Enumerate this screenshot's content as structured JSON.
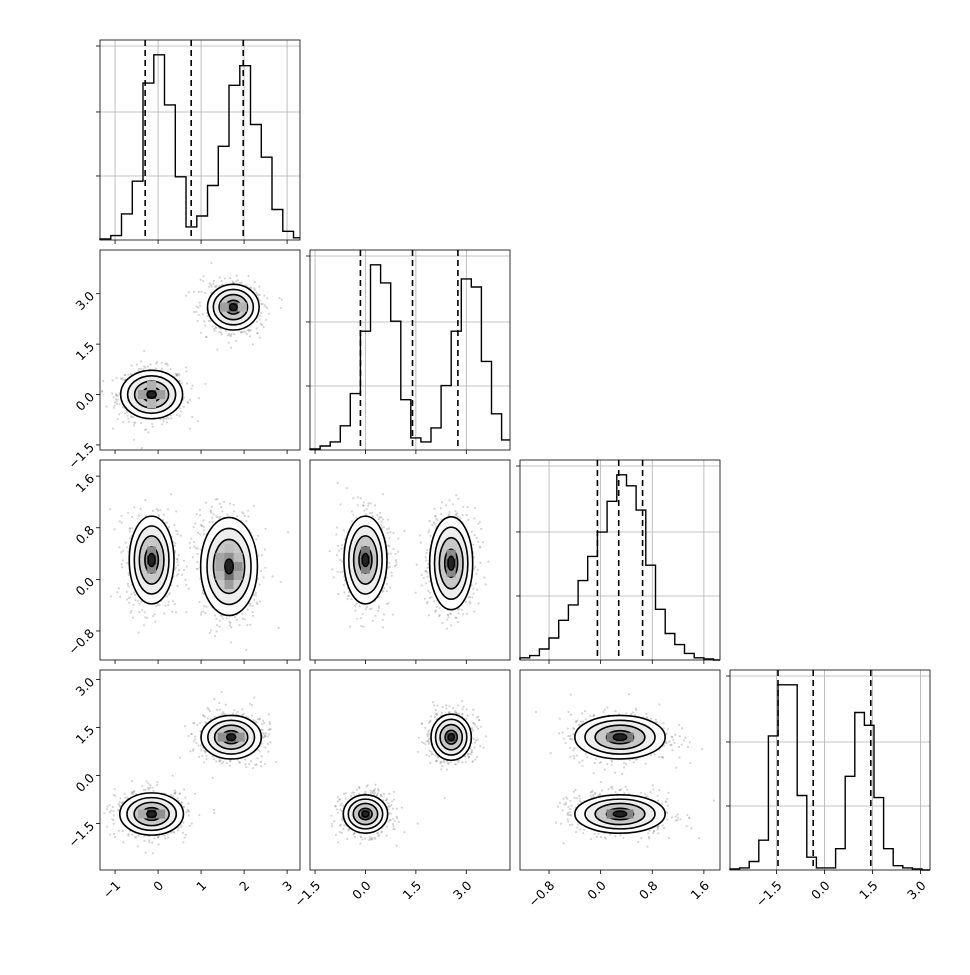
{
  "chart_data": {
    "type": "corner",
    "grid": true,
    "x_tick_labels": [
      [
        "−1",
        "0",
        "1",
        "2",
        "3"
      ],
      [
        "−1.5",
        "0.0",
        "1.5",
        "3.0"
      ],
      [
        "−0.8",
        "0.0",
        "0.8",
        "1.6"
      ],
      [
        "−1.5",
        "0.0",
        "1.5",
        "3.0"
      ]
    ],
    "y_tick_labels": [
      [],
      [
        "−1.5",
        "0.0",
        "1.5",
        "3.0"
      ],
      [
        "−0.8",
        "0.0",
        "0.8",
        "1.6"
      ],
      [
        "−1.5",
        "0.0",
        "1.5",
        "3.0"
      ]
    ],
    "x_ticks": [
      [
        -1,
        0,
        1,
        2,
        3
      ],
      [
        -1.5,
        0,
        1.5,
        3
      ],
      [
        -0.8,
        0,
        0.8,
        1.6
      ],
      [
        -1.5,
        0,
        1.5,
        3
      ]
    ],
    "ranges": [
      [
        -1.35,
        3.3
      ],
      [
        -1.65,
        4.3
      ],
      [
        -1.25,
        1.85
      ],
      [
        -2.95,
        3.3
      ]
    ],
    "quantiles": [
      [
        -0.3,
        0.77,
        1.98
      ],
      [
        -0.15,
        1.4,
        2.75
      ],
      [
        -0.05,
        0.28,
        0.65
      ],
      [
        -1.45,
        -0.35,
        1.45
      ]
    ],
    "histograms": [
      {
        "bins": [
          -1.35,
          -1.1,
          -0.85,
          -0.6,
          -0.35,
          -0.1,
          0.15,
          0.4,
          0.65,
          0.9,
          1.15,
          1.4,
          1.65,
          1.9,
          2.15,
          2.4,
          2.65,
          2.9,
          3.15,
          3.3
        ],
        "counts": [
          0.5,
          2,
          12,
          27,
          72,
          85,
          62,
          29,
          6,
          11,
          25,
          43,
          71,
          80,
          53,
          38,
          14,
          4,
          1
        ]
      },
      {
        "bins": [
          -1.65,
          -1.35,
          -1.05,
          -0.75,
          -0.45,
          -0.15,
          0.15,
          0.45,
          0.75,
          1.05,
          1.35,
          1.65,
          1.95,
          2.25,
          2.55,
          2.85,
          3.15,
          3.45,
          3.75,
          4.05,
          4.3
        ],
        "counts": [
          0.5,
          2,
          4,
          12,
          28,
          59,
          92,
          83,
          64,
          25,
          6,
          4,
          11,
          32,
          59,
          85,
          81,
          44,
          18,
          5
        ]
      },
      {
        "bins": [
          -1.25,
          -1.1,
          -0.95,
          -0.8,
          -0.65,
          -0.5,
          -0.35,
          -0.2,
          -0.05,
          0.1,
          0.25,
          0.4,
          0.55,
          0.7,
          0.85,
          1.0,
          1.15,
          1.3,
          1.45,
          1.6,
          1.75,
          1.85
        ],
        "counts": [
          1,
          2,
          5,
          10,
          18,
          25,
          36,
          47,
          58,
          72,
          84,
          79,
          68,
          43,
          23,
          12,
          7,
          3,
          1,
          0.5,
          0
        ]
      },
      {
        "bins": [
          -2.95,
          -2.65,
          -2.35,
          -2.05,
          -1.75,
          -1.45,
          -1.15,
          -0.85,
          -0.55,
          -0.25,
          0.05,
          0.35,
          0.65,
          0.95,
          1.25,
          1.55,
          1.85,
          2.15,
          2.45,
          2.75,
          3.05,
          3.3
        ],
        "counts": [
          0.5,
          1,
          4,
          14,
          63,
          87,
          87,
          35,
          6,
          1,
          1,
          10,
          44,
          74,
          68,
          34,
          10,
          2,
          1,
          0.5,
          0
        ]
      }
    ],
    "clusters_2d": [
      {
        "row": 1,
        "col": 0,
        "points": [
          [
            -0.15,
            0.0,
            0.36,
            0.36
          ],
          [
            1.75,
            2.6,
            0.3,
            0.34
          ]
        ]
      },
      {
        "row": 2,
        "col": 0,
        "points": [
          [
            -0.15,
            0.3,
            0.26,
            0.34
          ],
          [
            1.65,
            0.2,
            0.33,
            0.38
          ]
        ]
      },
      {
        "row": 2,
        "col": 1,
        "points": [
          [
            0.0,
            0.3,
            0.32,
            0.34
          ],
          [
            2.55,
            0.25,
            0.32,
            0.36
          ]
        ]
      },
      {
        "row": 3,
        "col": 0,
        "points": [
          [
            -0.15,
            -1.2,
            0.37,
            0.33
          ],
          [
            1.7,
            1.2,
            0.35,
            0.34
          ]
        ]
      },
      {
        "row": 3,
        "col": 1,
        "points": [
          [
            0.0,
            -1.2,
            0.33,
            0.3
          ],
          [
            2.55,
            1.2,
            0.3,
            0.36
          ]
        ]
      },
      {
        "row": 3,
        "col": 2,
        "points": [
          [
            0.3,
            1.2,
            0.35,
            0.34
          ],
          [
            0.3,
            -1.2,
            0.35,
            0.3
          ]
        ]
      }
    ]
  }
}
